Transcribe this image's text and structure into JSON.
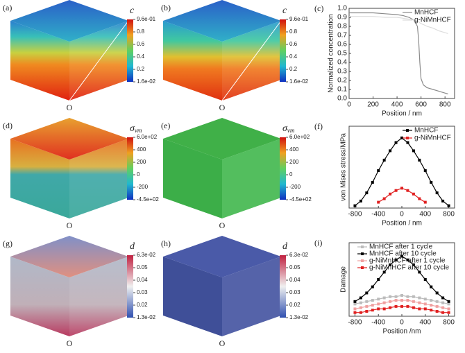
{
  "panels": [
    {
      "label": "(a)",
      "origin": "O",
      "colorbar": {
        "title": "c",
        "ticks": [
          "9.6e-01",
          "0.8",
          "0.6",
          "0.4",
          "0.2",
          "1.6e-02"
        ]
      }
    },
    {
      "label": "(b)",
      "origin": "O",
      "colorbar": {
        "title": "c",
        "ticks": [
          "9.6e-01",
          "0.8",
          "0.6",
          "0.4",
          "0.2",
          "1.6e-02"
        ]
      }
    },
    {
      "label": "(d)",
      "origin": "O",
      "colorbar": {
        "title": "σ",
        "title_sub": "vm",
        "ticks": [
          "6.0e+02",
          "400",
          "200",
          "0",
          "-200",
          "-4.5e+02"
        ]
      }
    },
    {
      "label": "(e)",
      "origin": "O",
      "colorbar": {
        "title": "σ",
        "title_sub": "vm",
        "ticks": [
          "6.0e+02",
          "400",
          "200",
          "0",
          "-200",
          "-4.5e+02"
        ]
      }
    },
    {
      "label": "(g)",
      "origin": "O",
      "colorbar": {
        "title": "d",
        "ticks": [
          "6.3e-02",
          "0.05",
          "0.04",
          "0.03",
          "0.02",
          "1.3e-02"
        ]
      }
    },
    {
      "label": "(h)",
      "origin": "O",
      "colorbar": {
        "title": "d",
        "ticks": [
          "6.3e-02",
          "0.05",
          "0.04",
          "0.03",
          "0.02",
          "1.3e-02"
        ]
      }
    }
  ],
  "chart_data": [
    {
      "type": "line",
      "panel_label": "(c)",
      "x_label": "Position / nm",
      "y_label": "Normalized concentration",
      "legend": "upper right",
      "x": [
        0,
        100,
        200,
        300,
        400,
        450,
        500,
        540,
        570,
        580,
        590,
        600,
        620,
        650,
        700,
        750,
        800,
        825
      ],
      "series": [
        {
          "name": "MnHCF",
          "color": "#8a8a8a",
          "values": [
            0.95,
            0.95,
            0.95,
            0.94,
            0.93,
            0.92,
            0.9,
            0.87,
            0.8,
            0.65,
            0.4,
            0.22,
            0.15,
            0.12,
            0.1,
            0.08,
            0.06,
            0.05
          ]
        },
        {
          "name": "g-NiMnHCF",
          "color": "#dddddd",
          "values": [
            0.91,
            0.91,
            0.91,
            0.9,
            0.9,
            0.89,
            0.88,
            0.87,
            0.86,
            0.85,
            0.84,
            0.83,
            0.82,
            0.8,
            0.78,
            0.75,
            0.73,
            0.72
          ]
        }
      ],
      "xlim": [
        0,
        880
      ],
      "ylim": [
        0,
        1
      ],
      "xticks": [
        0,
        200,
        400,
        600,
        800
      ],
      "yticks": [
        {
          "value": 0,
          "label": "0.0"
        },
        0.1,
        0.2,
        0.3,
        0.4,
        0.5,
        0.6,
        0.7,
        0.8,
        0.9,
        {
          "value": 1,
          "label": "1.0"
        }
      ]
    },
    {
      "type": "scatter-line",
      "panel_label": "(f)",
      "x_label": "Position / nm",
      "y_label": "von Mises stress/MPa",
      "legend": "upper right",
      "x": [
        -800,
        -700,
        -600,
        -500,
        -400,
        -300,
        -200,
        -100,
        0,
        100,
        200,
        300,
        400,
        500,
        600,
        700,
        800
      ],
      "series": [
        {
          "name": "MnHCF",
          "color": "#000000",
          "values": [
            20,
            60,
            130,
            220,
            320,
            410,
            490,
            560,
            600,
            560,
            490,
            410,
            320,
            220,
            130,
            60,
            20
          ]
        },
        {
          "name": "g-NiMnHCF",
          "color": "#e02020",
          "values": [
            null,
            null,
            null,
            null,
            50,
            80,
            120,
            150,
            170,
            150,
            120,
            80,
            50,
            null,
            null,
            null,
            null
          ]
        }
      ],
      "xlim": [
        -900,
        900
      ],
      "ylim": [
        0,
        700
      ],
      "xticks": [
        -800,
        -400,
        0,
        400,
        800
      ]
    },
    {
      "type": "scatter-line",
      "panel_label": "(i)",
      "x_label": "Position /nm",
      "y_label": "Damage",
      "legend": "upper center",
      "x": [
        -800,
        -700,
        -600,
        -500,
        -400,
        -300,
        -200,
        -100,
        0,
        100,
        200,
        300,
        400,
        500,
        600,
        700,
        800
      ],
      "series": [
        {
          "name": "MnHCF after 1 cycle",
          "color": "#bbbbbb",
          "values": [
            0.01,
            0.011,
            0.012,
            0.013,
            0.014,
            0.015,
            0.016,
            0.016,
            0.017,
            0.016,
            0.016,
            0.015,
            0.014,
            0.013,
            0.012,
            0.011,
            0.01
          ]
        },
        {
          "name": "MnHCF after 10 cycle",
          "color": "#000000",
          "values": [
            0.012,
            0.015,
            0.019,
            0.024,
            0.03,
            0.036,
            0.042,
            0.046,
            0.049,
            0.046,
            0.042,
            0.036,
            0.03,
            0.024,
            0.019,
            0.015,
            0.012
          ]
        },
        {
          "name": "g-NiMnHCF after 1 cycle",
          "color": "#f0a0a0",
          "values": [
            0.006,
            0.007,
            0.008,
            0.009,
            0.01,
            0.011,
            0.012,
            0.013,
            0.013,
            0.013,
            0.012,
            0.011,
            0.01,
            0.009,
            0.008,
            0.007,
            0.006
          ]
        },
        {
          "name": "g-NiMnHCF after 10 cycle",
          "color": "#e02020",
          "values": [
            0.003,
            0.003,
            0.004,
            0.005,
            0.006,
            0.006,
            0.007,
            0.008,
            0.008,
            0.008,
            0.007,
            0.006,
            0.006,
            0.005,
            0.004,
            0.003,
            0.003
          ]
        }
      ],
      "xlim": [
        -900,
        900
      ],
      "ylim": [
        0,
        0.06
      ],
      "xticks": [
        -800,
        -400,
        0,
        400,
        800
      ]
    }
  ]
}
